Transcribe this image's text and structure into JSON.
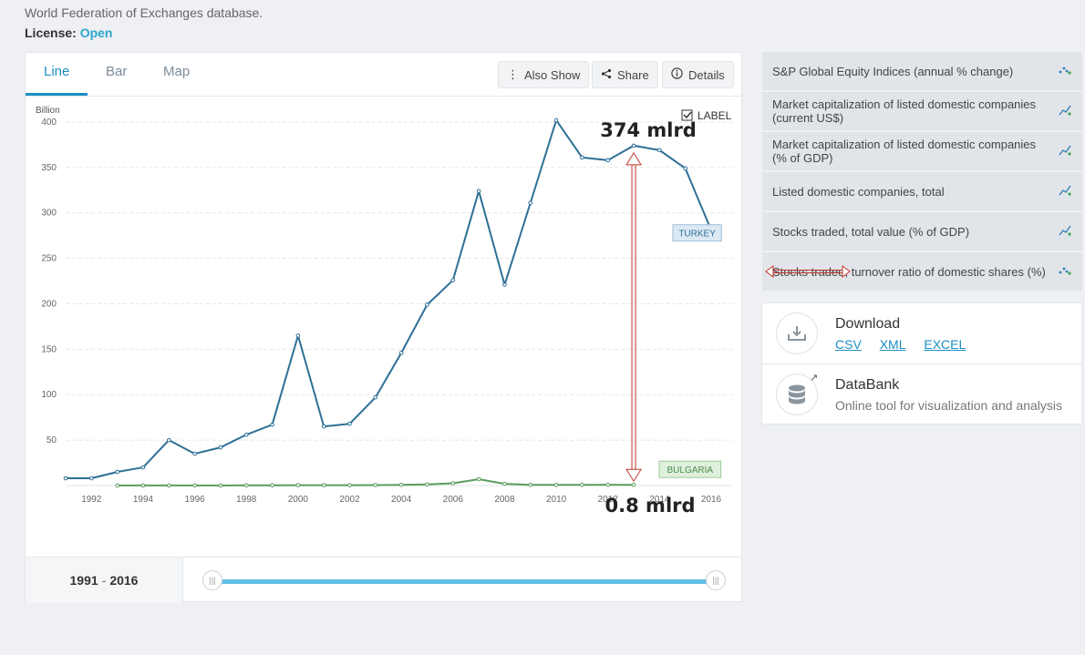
{
  "header": {
    "source_text": "World Federation of Exchanges database.",
    "license_label": "License:",
    "license_value": "Open"
  },
  "tabs": [
    {
      "label": "Line",
      "active": true
    },
    {
      "label": "Bar",
      "active": false
    },
    {
      "label": "Map",
      "active": false
    }
  ],
  "toolbar": {
    "also_show": "Also Show",
    "share": "Share",
    "details": "Details"
  },
  "label_toggle": {
    "text": "LABEL",
    "checked": true
  },
  "chart_data": {
    "type": "line",
    "ylabel": "Billion",
    "ylim": [
      0,
      420
    ],
    "yticks": [
      50,
      100,
      150,
      200,
      250,
      300,
      350,
      400
    ],
    "xlim": [
      1991,
      2016
    ],
    "xticks": [
      "1992",
      "1994",
      "1996",
      "1998",
      "2000",
      "2002",
      "2004",
      "2006",
      "2008",
      "2010",
      "2012",
      "2014",
      "2016"
    ],
    "grid": true,
    "series": [
      {
        "name": "TURKEY",
        "color": "#2e6f96",
        "x": [
          1991,
          1992,
          1993,
          1994,
          1995,
          1996,
          1997,
          1998,
          1999,
          2000,
          2001,
          2002,
          2003,
          2004,
          2005,
          2006,
          2007,
          2008,
          2009,
          2010,
          2011,
          2012,
          2013,
          2014,
          2015,
          2016
        ],
        "values": [
          8,
          8,
          15,
          20,
          50,
          35,
          42,
          56,
          67,
          165,
          65,
          68,
          97,
          146,
          199,
          226,
          324,
          221,
          311,
          402,
          361,
          358,
          374,
          369,
          349,
          281
        ]
      },
      {
        "name": "BULGARIA",
        "color": "#5a9e5e",
        "x": [
          1993,
          1994,
          1995,
          1996,
          1997,
          1998,
          1999,
          2000,
          2001,
          2002,
          2003,
          2004,
          2005,
          2006,
          2007,
          2008,
          2009,
          2010,
          2011,
          2012,
          2013
        ],
        "values": [
          0.1,
          0.1,
          0.1,
          0.1,
          0.1,
          0.2,
          0.3,
          0.4,
          0.4,
          0.4,
          0.5,
          0.8,
          1.2,
          2.5,
          7,
          1.9,
          0.8,
          0.7,
          0.8,
          0.9,
          0.8
        ]
      }
    ],
    "annotations": {
      "top_text": "374 mlrd",
      "bottom_text": "0.8 mlrd",
      "arrow_year": 2013,
      "arrow_from": 374,
      "arrow_to": 0.8,
      "arrow_color": "#c0392b"
    }
  },
  "range": {
    "start": "1991",
    "sep": "-",
    "end": "2016"
  },
  "related_indicators": [
    {
      "label": "S&P Global Equity Indices (annual % change)",
      "icon": "scatter-mini-icon"
    },
    {
      "label": "Market capitalization of listed domestic companies (current US$)",
      "icon": "line-mini-icon"
    },
    {
      "label": "Market capitalization of listed domestic companies (% of GDP)",
      "icon": "line-mini-icon"
    },
    {
      "label": "Listed domestic companies, total",
      "icon": "line-mini-icon"
    },
    {
      "label": "Stocks traded, total value (% of GDP)",
      "icon": "line-mini-icon"
    },
    {
      "label": "Stocks traded, turnover ratio of domestic shares (%)",
      "icon": "scatter-mini-icon"
    }
  ],
  "download": {
    "title": "Download",
    "links": [
      "CSV",
      "XML",
      "EXCEL"
    ]
  },
  "databank": {
    "title": "DataBank",
    "subtitle": "Online tool for visualization and analysis"
  }
}
